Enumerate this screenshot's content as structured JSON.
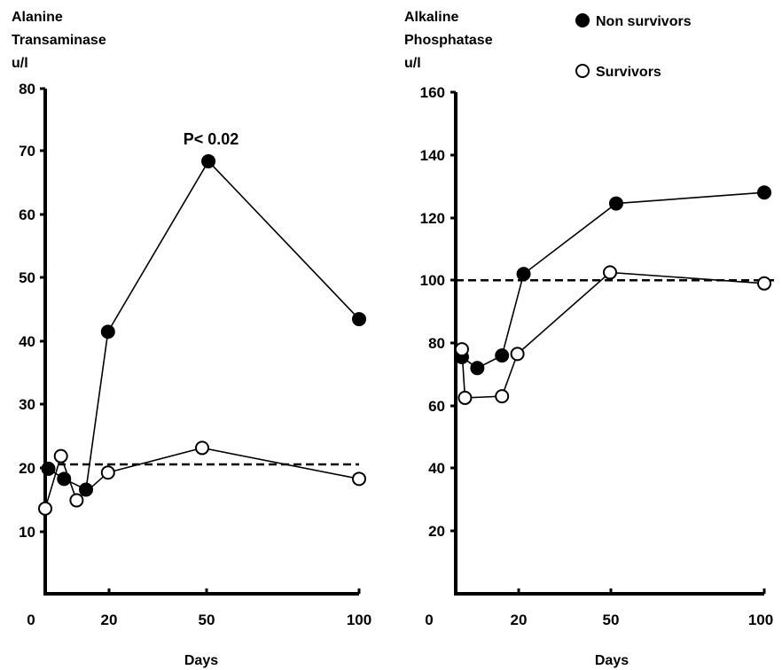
{
  "legend": {
    "position": "top-right",
    "entries": [
      {
        "label": "Non survivors",
        "marker": "filled-circle"
      },
      {
        "label": "Survivors",
        "marker": "open-circle"
      }
    ]
  },
  "chart_data": [
    {
      "type": "line",
      "title": "",
      "ylabel_lines": [
        "Alanine",
        "Transaminase",
        "u/l"
      ],
      "xlabel": "Days",
      "x_tick_labels": [
        "0",
        "20",
        "50",
        "100"
      ],
      "y_tick_labels": [
        "10",
        "20",
        "30",
        "40",
        "50",
        "60",
        "70",
        "80"
      ],
      "ylim": [
        0,
        80
      ],
      "grid": false,
      "annotation": {
        "text": "P< 0.02"
      },
      "reference_line": {
        "value": 20.5,
        "style": "dashed"
      },
      "series": [
        {
          "name": "Non survivors",
          "marker": "filled",
          "points": [
            {
              "x": 1,
              "y": 19.8
            },
            {
              "x": 6,
              "y": 18.2
            },
            {
              "x": 13,
              "y": 16.5
            },
            {
              "x": 20,
              "y": 41.5
            },
            {
              "x": 52,
              "y": 68.5
            },
            {
              "x": 100,
              "y": 43.5
            }
          ]
        },
        {
          "name": "Survivors",
          "marker": "open",
          "points": [
            {
              "x": 0,
              "y": 13.5
            },
            {
              "x": 5,
              "y": 21.8
            },
            {
              "x": 10,
              "y": 14.8
            },
            {
              "x": 20,
              "y": 19.2
            },
            {
              "x": 50,
              "y": 23.1
            },
            {
              "x": 100,
              "y": 18.2
            }
          ]
        }
      ]
    },
    {
      "type": "line",
      "title": "",
      "ylabel_lines": [
        "Alkaline",
        "Phosphatase",
        "u/l"
      ],
      "xlabel": "Days",
      "x_tick_labels": [
        "0",
        "20",
        "50",
        "100"
      ],
      "y_tick_labels": [
        "20",
        "40",
        "60",
        "80",
        "100",
        "120",
        "140",
        "160"
      ],
      "ylim": [
        0,
        160
      ],
      "grid": false,
      "reference_line": {
        "value": 100,
        "style": "dashed"
      },
      "series": [
        {
          "name": "Non survivors",
          "marker": "filled",
          "points": [
            {
              "x": 2,
              "y": 75.5
            },
            {
              "x": 7,
              "y": 72
            },
            {
              "x": 15,
              "y": 76
            },
            {
              "x": 22,
              "y": 102
            },
            {
              "x": 52,
              "y": 124.5
            },
            {
              "x": 100,
              "y": 128
            }
          ]
        },
        {
          "name": "Survivors",
          "marker": "open",
          "points": [
            {
              "x": 2,
              "y": 78
            },
            {
              "x": 3,
              "y": 62.5
            },
            {
              "x": 15,
              "y": 63
            },
            {
              "x": 20,
              "y": 76.5
            },
            {
              "x": 50,
              "y": 102.5
            },
            {
              "x": 100,
              "y": 99
            }
          ]
        }
      ]
    }
  ]
}
